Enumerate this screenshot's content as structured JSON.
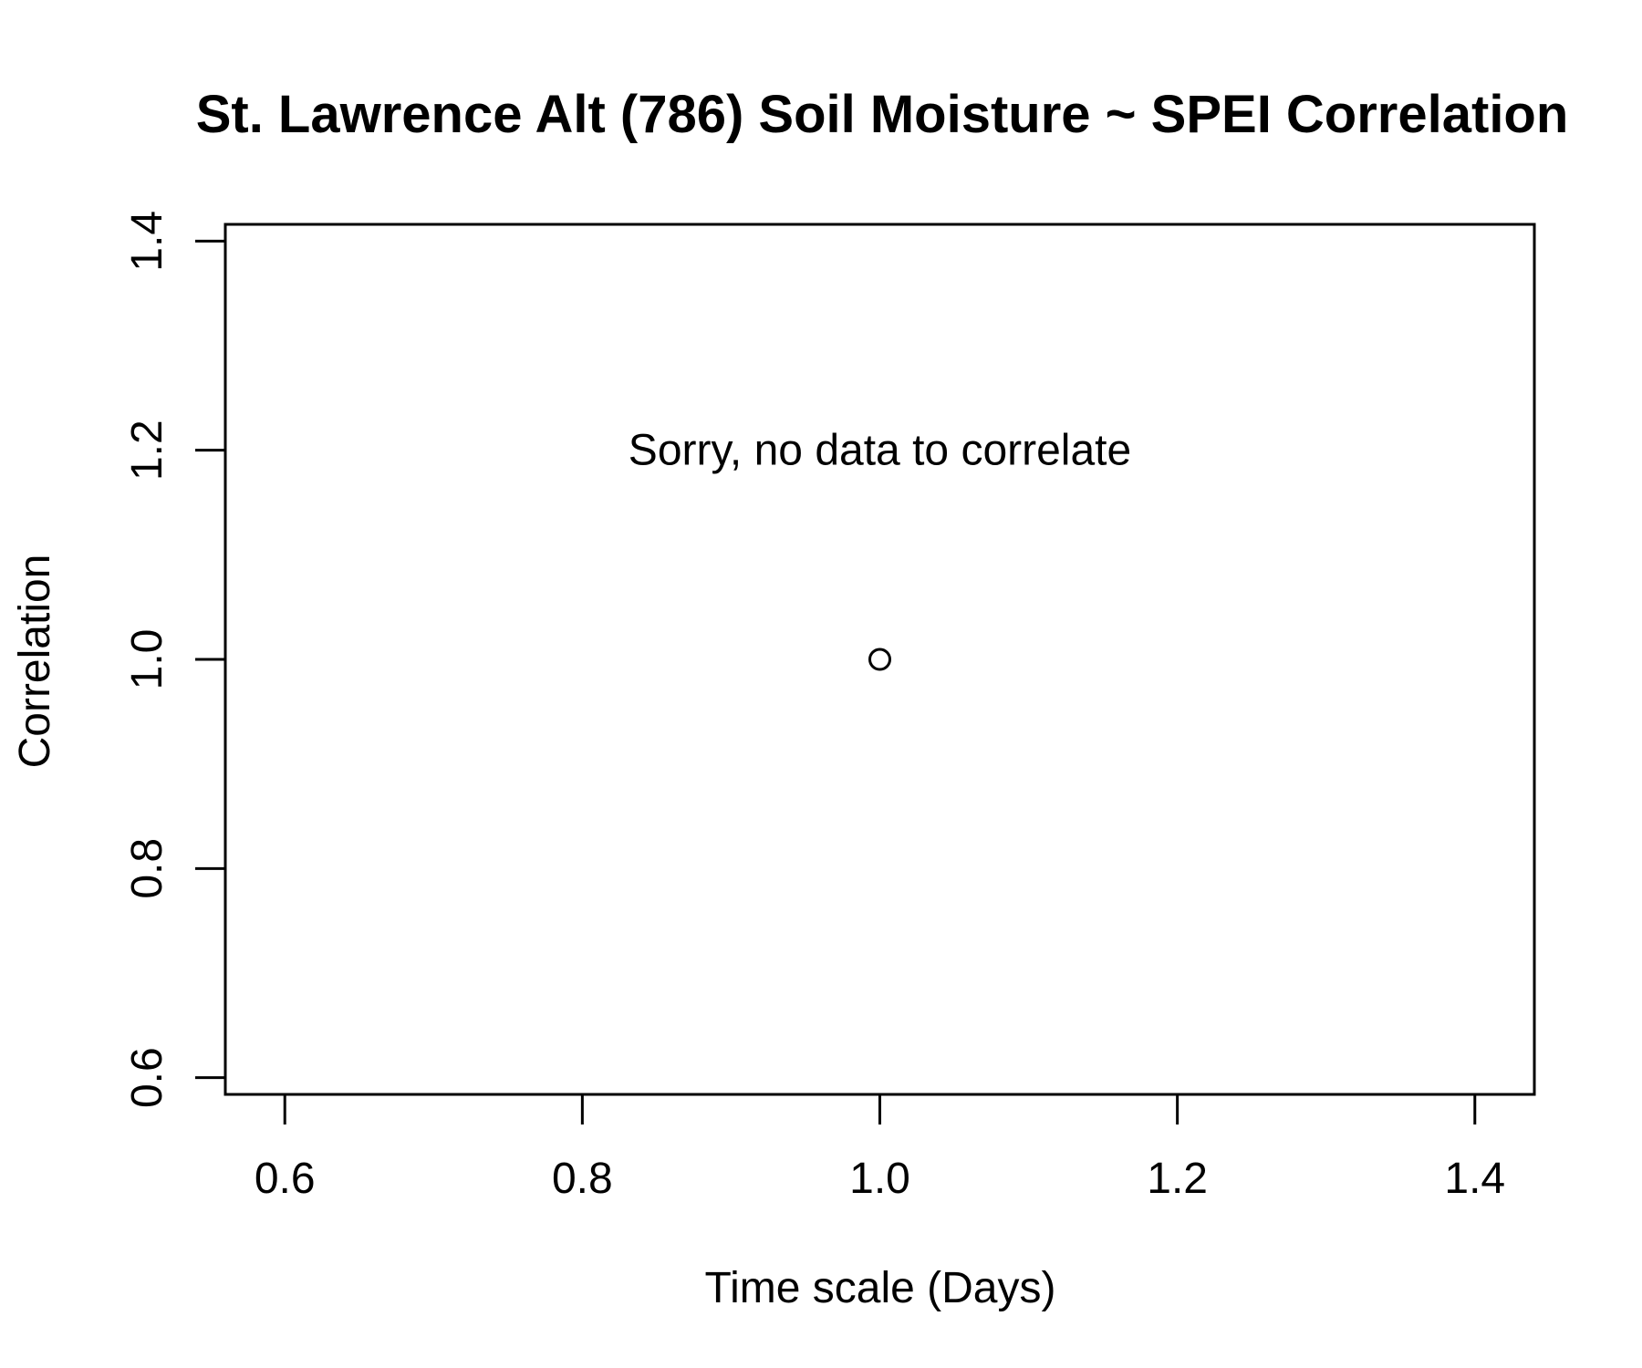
{
  "chart_data": {
    "type": "scatter",
    "title": "St. Lawrence Alt (786) Soil Moisture ~ SPEI Correlation",
    "xlabel": "Time scale (Days)",
    "ylabel": "Correlation",
    "xlim": [
      0.56,
      1.44
    ],
    "ylim": [
      0.584,
      1.416
    ],
    "x_ticks": [
      0.6,
      0.8,
      1.0,
      1.2,
      1.4
    ],
    "x_tick_labels": [
      "0.6",
      "0.8",
      "1.0",
      "1.2",
      "1.4"
    ],
    "y_ticks": [
      0.6,
      0.8,
      1.0,
      1.2,
      1.4
    ],
    "y_tick_labels": [
      "0.6",
      "0.8",
      "1.0",
      "1.2",
      "1.4"
    ],
    "points": [
      {
        "x": 1.0,
        "y": 1.0
      }
    ],
    "annotation": {
      "text": "Sorry, no data to correlate",
      "x": 1.0,
      "y": 1.2
    },
    "grid": false,
    "legend": "none"
  }
}
